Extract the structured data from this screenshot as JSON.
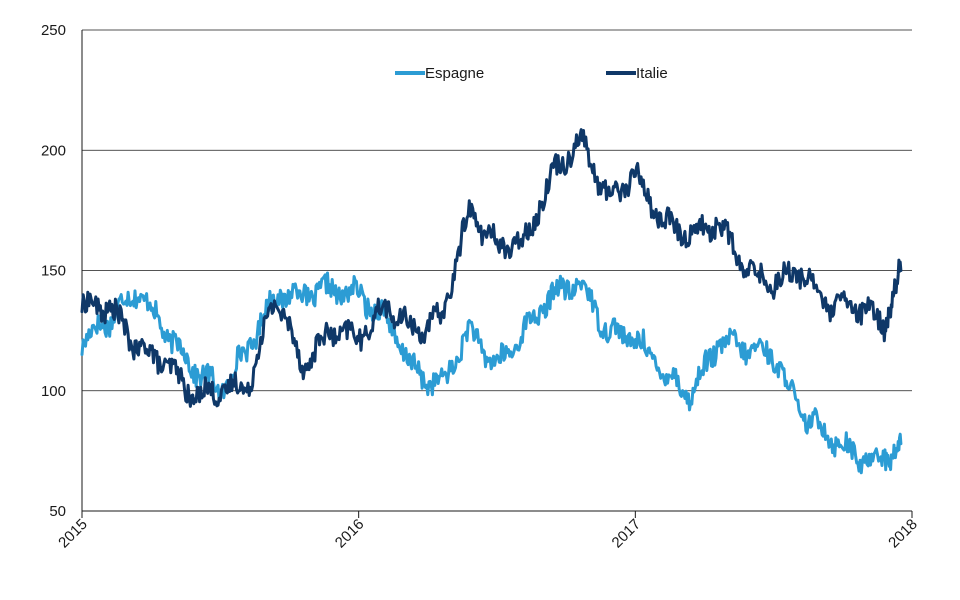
{
  "chart_data": {
    "type": "line",
    "title": "",
    "xlabel": "",
    "ylabel": "",
    "ylim": [
      50,
      250
    ],
    "y_ticks": [
      "50",
      "100",
      "150",
      "200",
      "250"
    ],
    "x_ticks": [
      "2015",
      "2016",
      "2017",
      "2018"
    ],
    "xlim": [
      2015,
      2018
    ],
    "grid": "horizontal",
    "legend_position": "top",
    "x": [
      2015.0,
      2015.1,
      2015.2,
      2015.3,
      2015.4,
      2015.5,
      2015.6,
      2015.7,
      2015.8,
      2015.9,
      2016.0,
      2016.1,
      2016.2,
      2016.3,
      2016.4,
      2016.5,
      2016.6,
      2016.7,
      2016.8,
      2016.9,
      2017.0,
      2017.1,
      2017.2,
      2017.3,
      2017.4,
      2017.5,
      2017.6,
      2017.7,
      2017.8,
      2017.9,
      2017.96
    ],
    "series": [
      {
        "name": "Espagne",
        "color": "#2c9cd4",
        "values": [
          120,
          130,
          142,
          125,
          110,
          100,
          118,
          140,
          140,
          142,
          140,
          130,
          108,
          102,
          125,
          110,
          125,
          140,
          145,
          125,
          122,
          108,
          98,
          120,
          118,
          115,
          90,
          82,
          72,
          72,
          78
        ]
      },
      {
        "name": "Italie",
        "color": "#0f3868",
        "values": [
          135,
          135,
          118,
          112,
          98,
          100,
          102,
          140,
          110,
          125,
          122,
          135,
          125,
          130,
          175,
          160,
          162,
          190,
          205,
          180,
          190,
          170,
          165,
          170,
          150,
          145,
          150,
          135,
          135,
          128,
          150
        ]
      }
    ]
  }
}
